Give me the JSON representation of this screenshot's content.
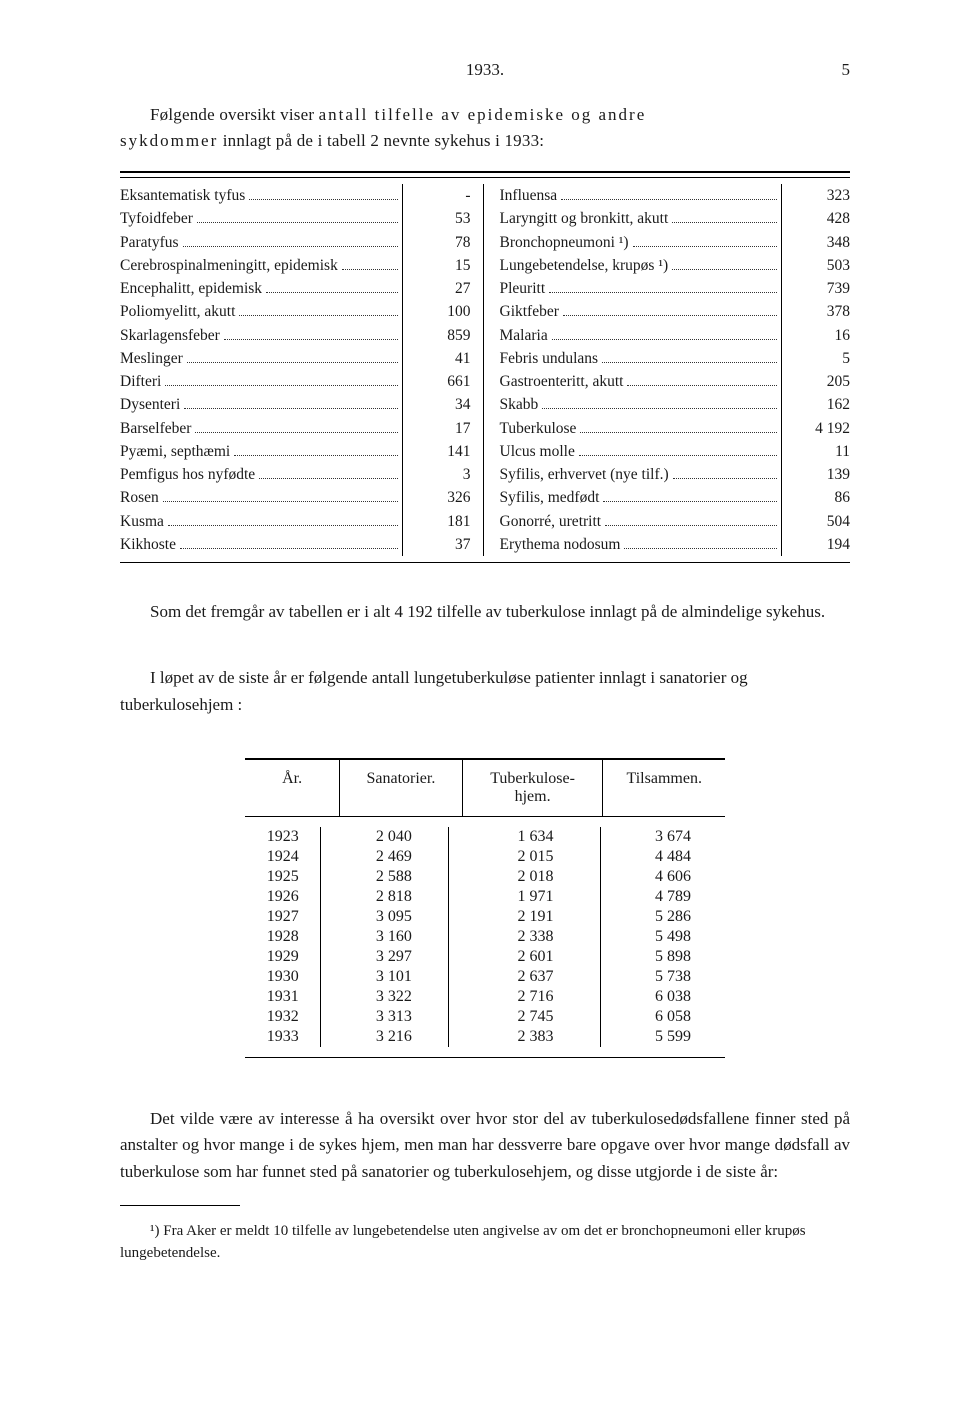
{
  "header": {
    "year": "1933.",
    "pageno": "5"
  },
  "intro": {
    "prefix": "Følgende oversikt viser ",
    "spaced1": "antall tilfelle av epidemiske og andre",
    "line2a": "sykdommer",
    "line2b": " innlagt på de i tabell 2 nevnte sykehus i 1933:"
  },
  "diseases": {
    "left": [
      {
        "name": "Eksantematisk tyfus",
        "val": "-"
      },
      {
        "name": "Tyfoidfeber",
        "val": "53"
      },
      {
        "name": "Paratyfus",
        "val": "78"
      },
      {
        "name": "Cerebrospinalmeningitt, epidemisk",
        "val": "15"
      },
      {
        "name": "Encephalitt, epidemisk",
        "val": "27"
      },
      {
        "name": "Poliomyelitt, akutt",
        "val": "100"
      },
      {
        "name": "Skarlagensfeber",
        "val": "859"
      },
      {
        "name": "Meslinger",
        "val": "41"
      },
      {
        "name": "Difteri",
        "val": "661"
      },
      {
        "name": "Dysenteri",
        "val": "34"
      },
      {
        "name": "Barselfeber",
        "val": "17"
      },
      {
        "name": "Pyæmi, septhæmi",
        "val": "141"
      },
      {
        "name": "Pemfigus hos nyfødte",
        "val": "3"
      },
      {
        "name": "Rosen",
        "val": "326"
      },
      {
        "name": "Kusma",
        "val": "181"
      },
      {
        "name": "Kikhoste",
        "val": "37"
      }
    ],
    "right": [
      {
        "name": "Influensa",
        "val": "323"
      },
      {
        "name": "Laryngitt og bronkitt, akutt",
        "val": "428"
      },
      {
        "name": "Bronchopneumoni ¹)",
        "val": "348"
      },
      {
        "name": "Lungebetendelse, krupøs ¹)",
        "val": "503"
      },
      {
        "name": "Pleuritt",
        "val": "739"
      },
      {
        "name": "Giktfeber",
        "val": "378"
      },
      {
        "name": "Malaria",
        "val": "16"
      },
      {
        "name": "Febris undulans",
        "val": "5"
      },
      {
        "name": "Gastroenteritt, akutt",
        "val": "205"
      },
      {
        "name": "Skabb",
        "val": "162"
      },
      {
        "name": "Tuberkulose",
        "val": "4 192"
      },
      {
        "name": "Ulcus molle",
        "val": "11"
      },
      {
        "name": "Syfilis, erhvervet (nye tilf.)",
        "val": "139"
      },
      {
        "name": "Syfilis, medfødt",
        "val": "86"
      },
      {
        "name": "Gonorré, uretritt",
        "val": "504"
      },
      {
        "name": "Erythema nodosum",
        "val": "194"
      }
    ]
  },
  "mid1": "Som det fremgår av tabellen er i alt 4 192 tilfelle av tuberkulose innlagt på de almindelige sykehus.",
  "mid2": "I løpet av de siste år er følgende antall lungetuberkuløse patienter innlagt i sanatorier og tuberkulosehjem :",
  "san": {
    "headers": {
      "year": "År.",
      "san": "Sanatorier.",
      "tub": "Tuberkulose-\nhjem.",
      "til": "Tilsammen."
    },
    "rows": [
      {
        "year": "1923",
        "san": "2 040",
        "tub": "1 634",
        "til": "3 674"
      },
      {
        "year": "1924",
        "san": "2 469",
        "tub": "2 015",
        "til": "4 484"
      },
      {
        "year": "1925",
        "san": "2 588",
        "tub": "2 018",
        "til": "4 606"
      },
      {
        "year": "1926",
        "san": "2 818",
        "tub": "1 971",
        "til": "4 789"
      },
      {
        "year": "1927",
        "san": "3 095",
        "tub": "2 191",
        "til": "5 286"
      },
      {
        "year": "1928",
        "san": "3 160",
        "tub": "2 338",
        "til": "5 498"
      },
      {
        "year": "1929",
        "san": "3 297",
        "tub": "2 601",
        "til": "5 898"
      },
      {
        "year": "1930",
        "san": "3 101",
        "tub": "2 637",
        "til": "5 738"
      },
      {
        "year": "1931",
        "san": "3 322",
        "tub": "2 716",
        "til": "6 038"
      },
      {
        "year": "1932",
        "san": "3 313",
        "tub": "2 745",
        "til": "6 058"
      },
      {
        "year": "1933",
        "san": "3 216",
        "tub": "2 383",
        "til": "5 599"
      }
    ]
  },
  "bottom": "Det vilde være av interesse å ha oversikt over hvor stor del av tuberkulose­dødsfallene finner sted på anstalter og hvor mange i de sykes hjem, men man har dessverre bare opgave over hvor mange dødsfall av tuberkulose som har funnet sted på sanatorier og tuberkulosehjem, og disse utgjorde i de siste år:",
  "footnote": "¹) Fra Aker er meldt 10 tilfelle av lungebetendelse uten angivelse av om det er bronchopneumoni eller krupøs lungebetendelse."
}
